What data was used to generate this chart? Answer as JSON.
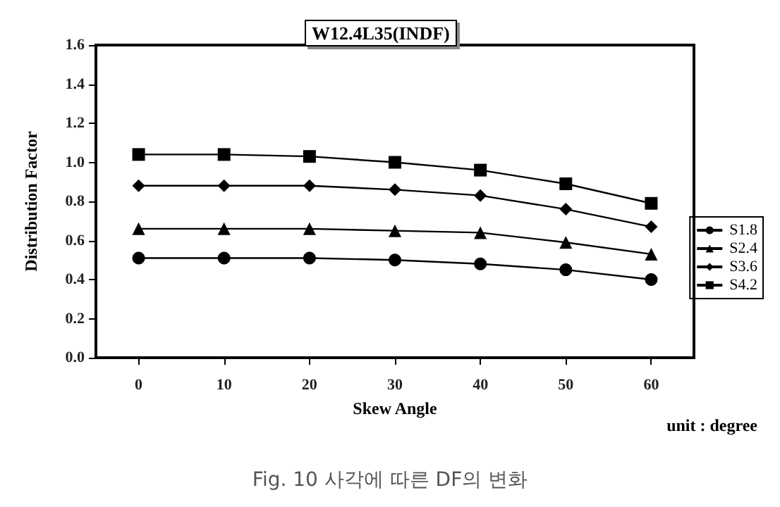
{
  "chart_data": {
    "type": "line",
    "title": "W12.4L35(INDF)",
    "xlabel": "Skew Angle",
    "ylabel": "Distribution Factor",
    "annotations": [
      "unit : degree",
      "Fig. 10 사각에 따른 DF의 변화"
    ],
    "x": [
      0,
      10,
      20,
      30,
      40,
      50,
      60
    ],
    "xlim": [
      -5,
      65
    ],
    "xticks": [
      0,
      10,
      20,
      30,
      40,
      50,
      60
    ],
    "ylim": [
      0,
      1.6
    ],
    "yticks": [
      {
        "value": 0,
        "label": "0.0"
      },
      0.2,
      0.4,
      0.6,
      0.8,
      {
        "value": 1,
        "label": "1.0"
      },
      1.2,
      1.4,
      1.6
    ],
    "grid": false,
    "legend": "right",
    "series": [
      {
        "name": "S1.8",
        "color": "#000000",
        "marker": "circle",
        "values": [
          0.51,
          0.51,
          0.51,
          0.5,
          0.48,
          0.45,
          0.4
        ]
      },
      {
        "name": "S2.4",
        "color": "#000000",
        "marker": "triangle",
        "values": [
          0.66,
          0.66,
          0.66,
          0.65,
          0.64,
          0.59,
          0.53
        ]
      },
      {
        "name": "S3.6",
        "color": "#000000",
        "marker": "diamond",
        "values": [
          0.88,
          0.88,
          0.88,
          0.86,
          0.83,
          0.76,
          0.67
        ]
      },
      {
        "name": "S4.2",
        "color": "#000000",
        "marker": "square",
        "values": [
          1.04,
          1.04,
          1.03,
          1.0,
          0.96,
          0.89,
          0.79
        ]
      }
    ]
  }
}
